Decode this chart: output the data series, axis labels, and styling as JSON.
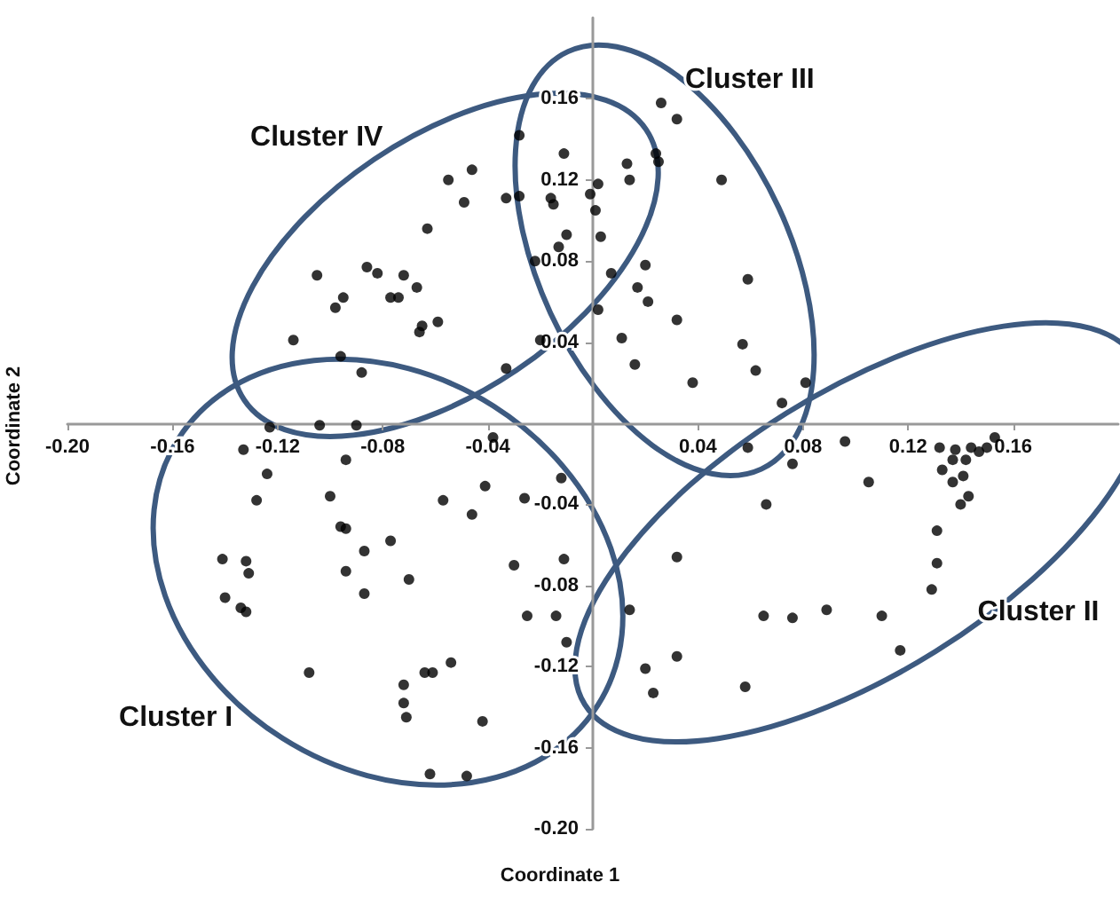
{
  "chart_data": {
    "type": "scatter",
    "xlabel": "Coordinate 1",
    "ylabel": "Coordinate 2",
    "xlim": [
      -0.2,
      0.2
    ],
    "ylim": [
      -0.2,
      0.2
    ],
    "xticks": [
      {
        "value": -0.2,
        "label": "-0.20"
      },
      {
        "value": -0.16,
        "label": "-0.16"
      },
      {
        "value": -0.12,
        "label": "-0.12"
      },
      {
        "value": -0.08,
        "label": "-0.08"
      },
      {
        "value": -0.04,
        "label": "-0.04"
      },
      {
        "value": 0.04,
        "label": "0.04"
      },
      {
        "value": 0.08,
        "label": "0.08"
      },
      {
        "value": 0.12,
        "label": "0.12"
      },
      {
        "value": 0.16,
        "label": "0.16"
      }
    ],
    "yticks": [
      {
        "value": -0.2,
        "label": "-0.20"
      },
      {
        "value": -0.16,
        "label": "-0.16"
      },
      {
        "value": -0.12,
        "label": "-0.12"
      },
      {
        "value": -0.08,
        "label": "-0.08"
      },
      {
        "value": -0.04,
        "label": "-0.04"
      },
      {
        "value": 0.04,
        "label": "0.04"
      },
      {
        "value": 0.08,
        "label": "0.08"
      },
      {
        "value": 0.12,
        "label": "0.12"
      },
      {
        "value": 0.16,
        "label": "0.16"
      }
    ],
    "grid": false,
    "marker": "circle",
    "annotations": [
      "Cluster I",
      "Cluster II",
      "Cluster III",
      "Cluster IV"
    ],
    "series": [
      {
        "color": "#000000",
        "x": [
          -0.123,
          -0.104,
          -0.09,
          -0.133,
          -0.124,
          -0.094,
          -0.038,
          -0.012,
          -0.041,
          -0.026,
          -0.057,
          -0.046,
          -0.128,
          -0.1,
          -0.096,
          -0.094,
          -0.077,
          -0.087,
          -0.094,
          -0.07,
          -0.087,
          -0.141,
          -0.132,
          -0.131,
          -0.14,
          -0.134,
          -0.132,
          -0.03,
          -0.011,
          -0.025,
          -0.014,
          -0.01,
          -0.108,
          -0.064,
          -0.061,
          -0.054,
          -0.072,
          -0.072,
          -0.071,
          -0.042,
          -0.062,
          -0.048
        ],
        "values": [
          -0.002,
          -0.001,
          -0.001,
          -0.013,
          -0.025,
          -0.018,
          -0.007,
          -0.027,
          -0.031,
          -0.037,
          -0.038,
          -0.045,
          -0.038,
          -0.036,
          -0.051,
          -0.052,
          -0.058,
          -0.063,
          -0.073,
          -0.077,
          -0.084,
          -0.067,
          -0.068,
          -0.074,
          -0.086,
          -0.091,
          -0.093,
          -0.07,
          -0.067,
          -0.095,
          -0.095,
          -0.108,
          -0.123,
          -0.123,
          -0.123,
          -0.118,
          -0.129,
          -0.138,
          -0.145,
          -0.147,
          -0.173,
          -0.174
        ]
      },
      {
        "color": "#000000",
        "x": [
          0.059,
          0.076,
          0.096,
          0.105,
          0.066,
          0.032,
          0.014,
          0.065,
          0.076,
          0.089,
          0.11,
          0.117,
          0.02,
          0.032,
          0.023,
          0.058,
          0.129,
          0.131,
          0.131,
          0.14,
          0.143,
          0.137,
          0.141,
          0.133,
          0.137,
          0.142,
          0.138,
          0.144,
          0.147,
          0.15,
          0.153,
          0.132
        ],
        "values": [
          -0.012,
          -0.02,
          -0.009,
          -0.029,
          -0.04,
          -0.066,
          -0.092,
          -0.095,
          -0.096,
          -0.092,
          -0.095,
          -0.112,
          -0.121,
          -0.115,
          -0.133,
          -0.13,
          -0.082,
          -0.069,
          -0.053,
          -0.04,
          -0.036,
          -0.029,
          -0.026,
          -0.023,
          -0.018,
          -0.018,
          -0.013,
          -0.012,
          -0.014,
          -0.012,
          -0.007,
          -0.012
        ]
      },
      {
        "color": "#000000",
        "x": [
          0.026,
          0.032,
          0.013,
          0.014,
          0.024,
          0.025,
          0.049,
          0.002,
          -0.001,
          0.001,
          0.003,
          0.007,
          0.02,
          0.017,
          0.021,
          0.059,
          0.032,
          0.002,
          0.011,
          0.016,
          0.057,
          0.062,
          0.038,
          0.081,
          0.072
        ],
        "values": [
          0.158,
          0.15,
          0.128,
          0.12,
          0.133,
          0.129,
          0.12,
          0.118,
          0.113,
          0.105,
          0.092,
          0.074,
          0.078,
          0.067,
          0.06,
          0.071,
          0.051,
          0.056,
          0.042,
          0.029,
          0.039,
          0.026,
          0.02,
          0.02,
          0.01
        ]
      },
      {
        "color": "#000000",
        "x": [
          -0.028,
          -0.011,
          -0.055,
          -0.046,
          -0.049,
          -0.033,
          -0.028,
          -0.016,
          -0.015,
          -0.01,
          -0.013,
          -0.022,
          -0.063,
          -0.105,
          -0.086,
          -0.082,
          -0.072,
          -0.067,
          -0.095,
          -0.098,
          -0.077,
          -0.074,
          -0.059,
          -0.065,
          -0.066,
          -0.114,
          -0.096,
          -0.088,
          -0.02,
          -0.033
        ],
        "values": [
          0.142,
          0.133,
          0.12,
          0.125,
          0.109,
          0.111,
          0.112,
          0.111,
          0.108,
          0.093,
          0.087,
          0.08,
          0.096,
          0.073,
          0.077,
          0.074,
          0.073,
          0.067,
          0.062,
          0.057,
          0.062,
          0.062,
          0.05,
          0.048,
          0.045,
          0.041,
          0.033,
          0.025,
          0.041,
          0.027
        ]
      }
    ]
  }
}
